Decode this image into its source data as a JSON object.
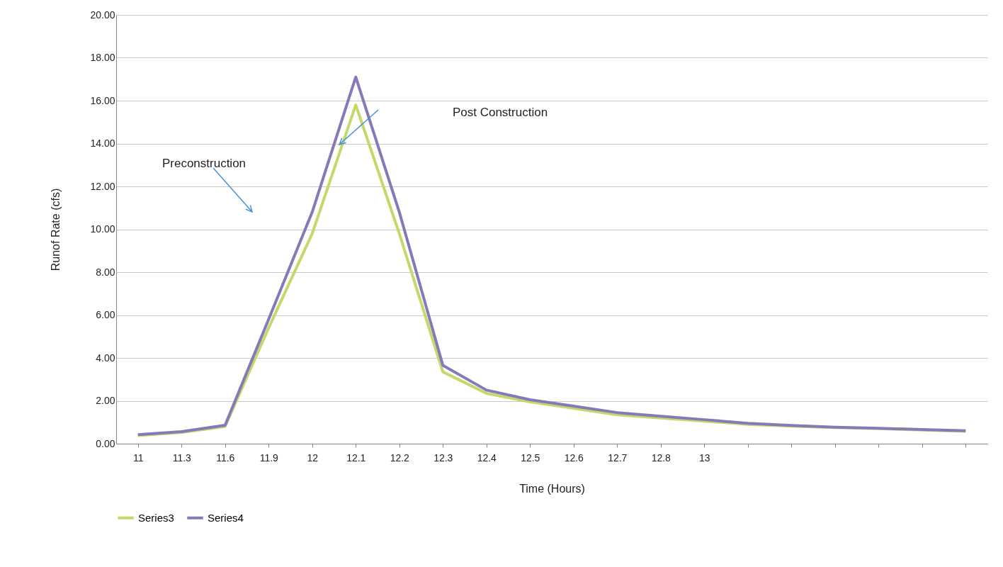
{
  "chart_data": {
    "type": "line",
    "xlabel": "Time (Hours)",
    "ylabel": "Runof Rate (cfs)",
    "categories": [
      "11",
      "11.3",
      "11.6",
      "11.9",
      "12",
      "12.1",
      "12.2",
      "12.3",
      "12.4",
      "12.5",
      "12.6",
      "12.7",
      "12.8",
      "13",
      null,
      null,
      null,
      null,
      null,
      null
    ],
    "series": [
      {
        "name": "Series3",
        "color": "#c5d96a",
        "values": [
          0.38,
          0.52,
          0.8,
          5.4,
          9.8,
          15.8,
          9.8,
          3.35,
          2.35,
          1.95,
          1.65,
          1.35,
          1.2,
          1.05,
          0.9,
          0.82,
          0.75,
          0.7,
          0.64,
          0.58
        ]
      },
      {
        "name": "Series4",
        "color": "#8878b8",
        "values": [
          0.42,
          0.56,
          0.86,
          5.8,
          10.8,
          17.1,
          10.8,
          3.65,
          2.5,
          2.05,
          1.75,
          1.45,
          1.28,
          1.12,
          0.95,
          0.85,
          0.77,
          0.72,
          0.66,
          0.6
        ]
      }
    ],
    "ylim": [
      0,
      20
    ],
    "yticks": [
      {
        "value": 0,
        "label": "0.00"
      },
      {
        "value": 2,
        "label": "2.00"
      },
      {
        "value": 4,
        "label": "4.00"
      },
      {
        "value": 6,
        "label": "6.00"
      },
      {
        "value": 8,
        "label": "8.00"
      },
      {
        "value": 10,
        "label": "10.00"
      },
      {
        "value": 12,
        "label": "12.00"
      },
      {
        "value": 14,
        "label": "14.00"
      },
      {
        "value": 16,
        "label": "16.00"
      },
      {
        "value": 18,
        "label": "18.00"
      },
      {
        "value": 20,
        "label": "20.00"
      }
    ],
    "grid": "y",
    "legend": "bottom left",
    "marker": "none",
    "line_style": "solid",
    "annotations": [
      "Preconstruction",
      "Post Construction"
    ]
  }
}
